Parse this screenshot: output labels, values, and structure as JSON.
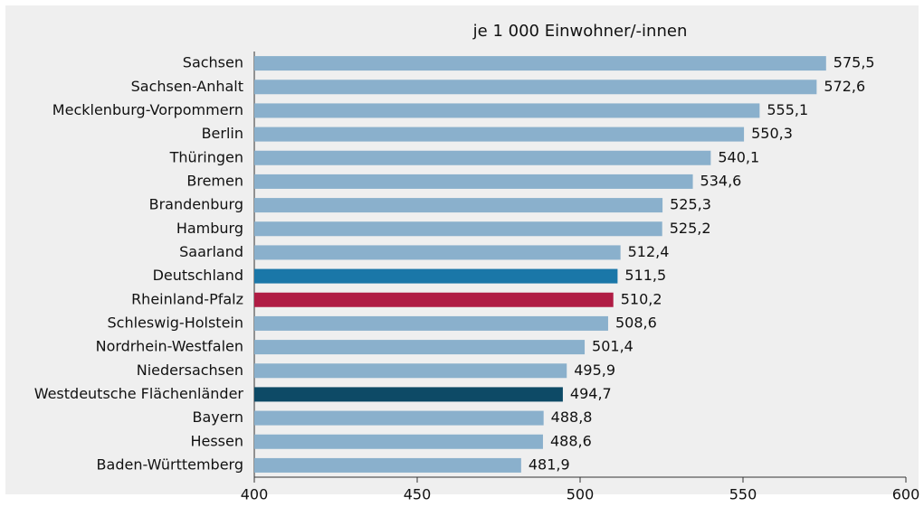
{
  "chart_data": {
    "type": "bar",
    "orientation": "horizontal",
    "title": "je 1 000 Einwohner/-innen",
    "categories": [
      "Sachsen",
      "Sachsen-Anhalt",
      "Mecklenburg-Vorpommern",
      "Berlin",
      "Thüringen",
      "Bremen",
      "Brandenburg",
      "Hamburg",
      "Saarland",
      "Deutschland",
      "Rheinland-Pfalz",
      "Schleswig-Holstein",
      "Nordrhein-Westfalen",
      "Niedersachsen",
      "Westdeutsche Flächenländer",
      "Bayern",
      "Hessen",
      "Baden-Württemberg"
    ],
    "values": [
      575.5,
      572.6,
      555.1,
      550.3,
      540.1,
      534.6,
      525.3,
      525.2,
      512.4,
      511.5,
      510.2,
      508.6,
      501.4,
      495.9,
      494.7,
      488.8,
      488.6,
      481.9
    ],
    "value_labels": [
      "575,5",
      "572,6",
      "555,1",
      "550,3",
      "540,1",
      "534,6",
      "525,3",
      "525,2",
      "512,4",
      "511,5",
      "510,2",
      "508,6",
      "501,4",
      "495,9",
      "494,7",
      "488,8",
      "488,6",
      "481,9"
    ],
    "colors": [
      "#8ab0cc",
      "#8ab0cc",
      "#8ab0cc",
      "#8ab0cc",
      "#8ab0cc",
      "#8ab0cc",
      "#8ab0cc",
      "#8ab0cc",
      "#8ab0cc",
      "#1a77a8",
      "#b01c44",
      "#8ab0cc",
      "#8ab0cc",
      "#8ab0cc",
      "#0d4a66",
      "#8ab0cc",
      "#8ab0cc",
      "#8ab0cc"
    ],
    "label_colors": [
      "#111",
      "#111",
      "#111",
      "#111",
      "#111",
      "#111",
      "#111",
      "#111",
      "#111",
      "#1a77a8",
      "#b01c44",
      "#111",
      "#111",
      "#111",
      "#111",
      "#111",
      "#111",
      "#111"
    ],
    "xlim": [
      400,
      600
    ],
    "xticks": [
      400,
      450,
      500,
      550,
      600
    ]
  }
}
